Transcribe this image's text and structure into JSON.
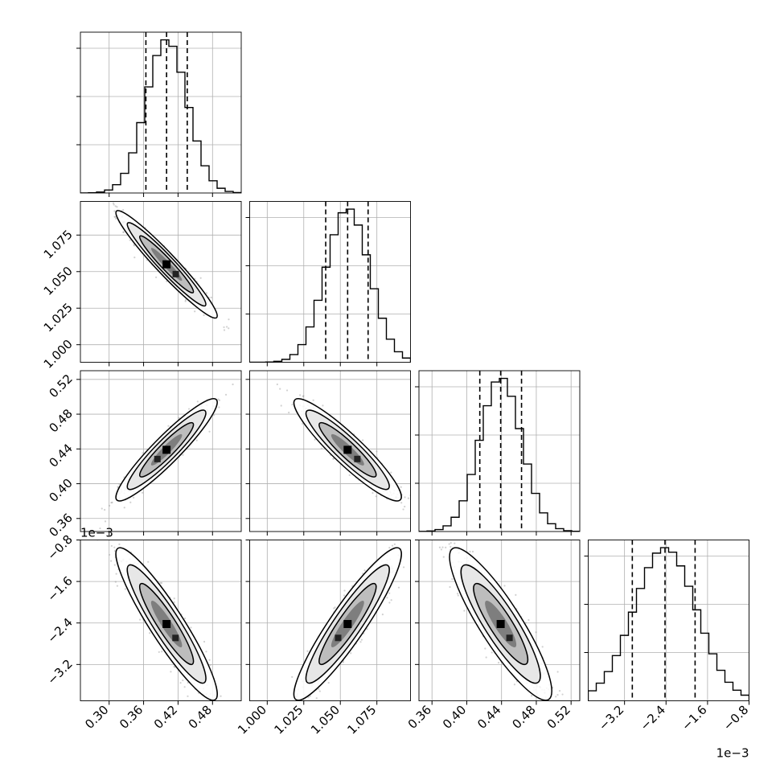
{
  "chart_data": {
    "type": "corner",
    "grid": true,
    "parameters": [
      {
        "range": [
          0.25,
          0.53
        ],
        "ticks": [
          0.3,
          0.36,
          0.42,
          0.48
        ],
        "tick_labels": [
          "0.30",
          "0.36",
          "0.42",
          "0.48"
        ],
        "quantiles": [
          0.364,
          0.4,
          0.436
        ],
        "mean": 0.4,
        "sd": 0.036,
        "offset_label": ""
      },
      {
        "range": [
          0.988,
          1.098
        ],
        "ticks": [
          1.0,
          1.025,
          1.05,
          1.075
        ],
        "tick_labels": [
          "1.000",
          "1.025",
          "1.050",
          "1.075"
        ],
        "quantiles": [
          1.04,
          1.055,
          1.069
        ],
        "mean": 1.055,
        "sd": 0.015,
        "offset_label": ""
      },
      {
        "range": [
          0.345,
          0.53
        ],
        "ticks": [
          0.36,
          0.4,
          0.44,
          0.48,
          0.52
        ],
        "tick_labels": [
          "0.36",
          "0.40",
          "0.44",
          "0.48",
          "0.52"
        ],
        "quantiles": [
          0.415,
          0.439,
          0.463
        ],
        "mean": 0.439,
        "sd": 0.024,
        "offset_label": ""
      },
      {
        "range": [
          -3.9,
          -0.8
        ],
        "ticks": [
          -3.2,
          -2.4,
          -1.6,
          -0.8
        ],
        "tick_labels": [
          "−3.2",
          "−2.4",
          "−1.6",
          "−0.8"
        ],
        "quantiles": [
          -3.05,
          -2.42,
          -1.84
        ],
        "mean": -2.42,
        "sd": 0.6,
        "offset_label": "1e−3"
      }
    ],
    "correlations": [
      {
        "pair": [
          0,
          1
        ],
        "rho": -0.96
      },
      {
        "pair": [
          0,
          2
        ],
        "rho": 0.93
      },
      {
        "pair": [
          0,
          3
        ],
        "rho": -0.92
      },
      {
        "pair": [
          1,
          2
        ],
        "rho": -0.92
      },
      {
        "pair": [
          1,
          3
        ],
        "rho": 0.92
      },
      {
        "pair": [
          2,
          3
        ],
        "rho": -0.88
      }
    ],
    "colors": {
      "line": "#000000",
      "grid": "#b0b0b0",
      "points": "#9a9a9a"
    }
  }
}
